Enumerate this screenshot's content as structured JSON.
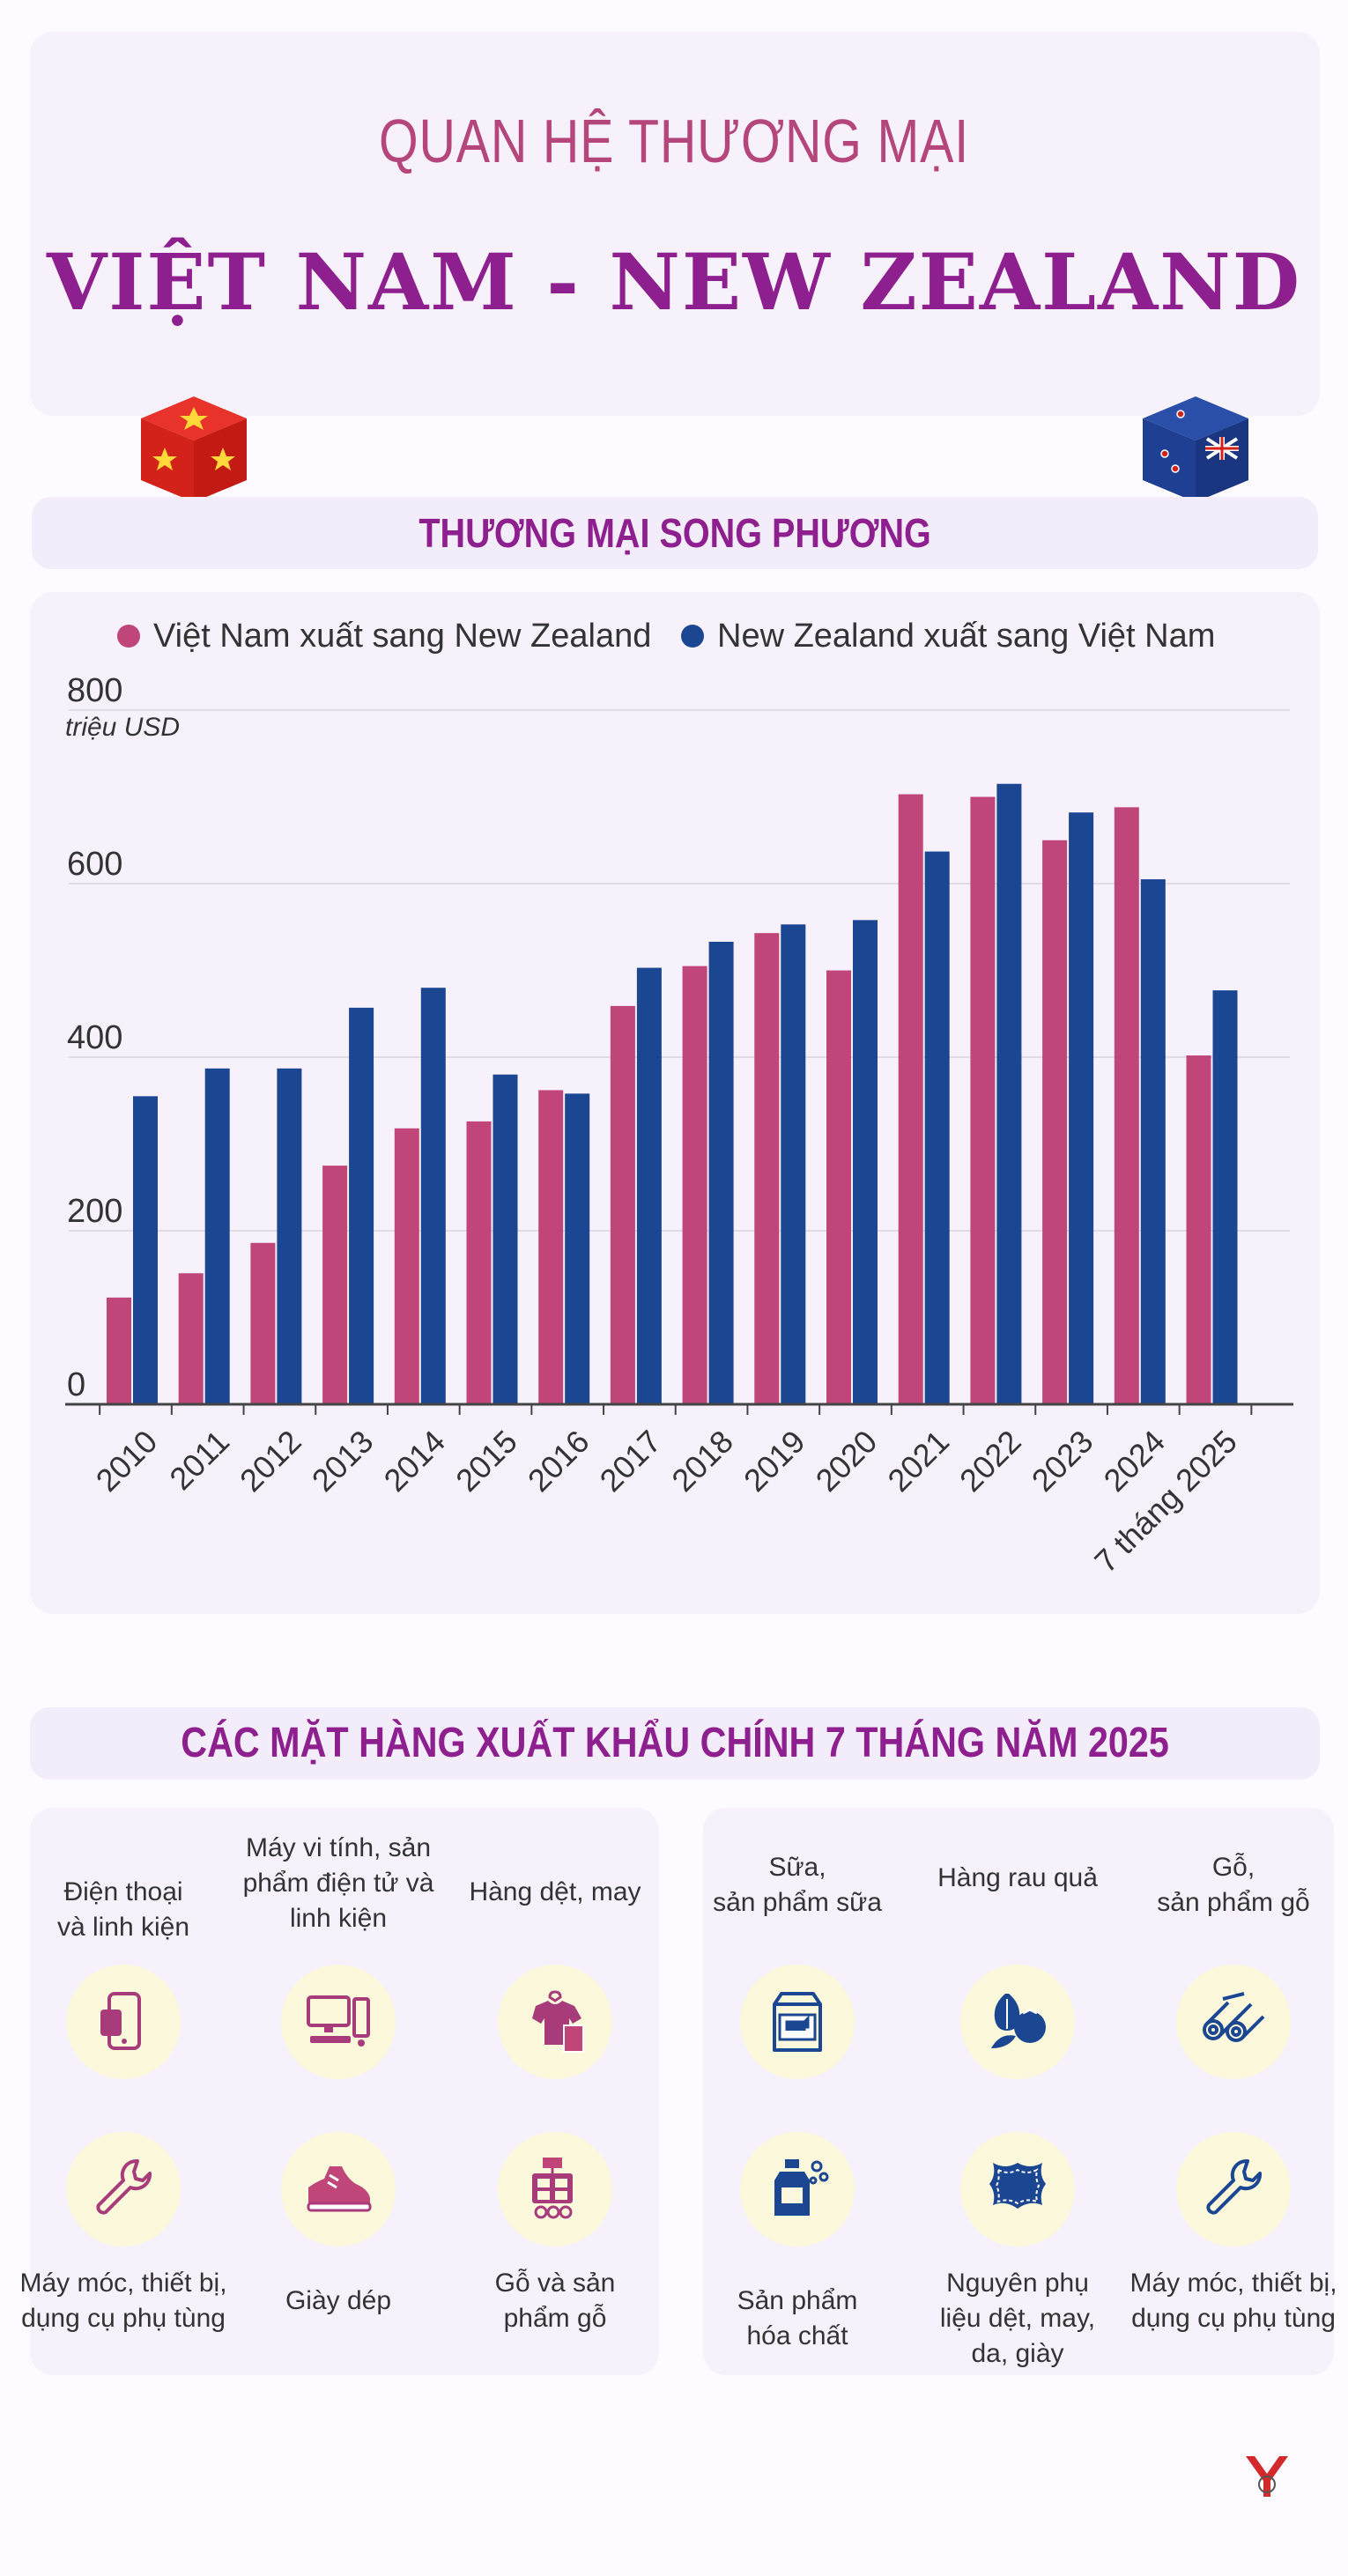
{
  "header": {
    "subtitle": "QUAN HỆ THƯƠNG MẠI",
    "title": "VIỆT NAM - NEW ZEALAND"
  },
  "section_trade": {
    "title": "THƯƠNG MẠI SONG PHƯƠNG"
  },
  "section_goods": {
    "title": "CÁC MẶT HÀNG XUẤT KHẨU CHÍNH 7 THÁNG NĂM 2025"
  },
  "colors": {
    "vn": "#c0467a",
    "nz": "#1b4691",
    "accent": "#8e1f8f",
    "pink": "#b5467c"
  },
  "chart_data": {
    "type": "bar",
    "unit": "triệu USD",
    "categories": [
      "2010",
      "2011",
      "2012",
      "2013",
      "2014",
      "2015",
      "2016",
      "2017",
      "2018",
      "2019",
      "2020",
      "2021",
      "2022",
      "2023",
      "2024",
      "7 tháng 2025"
    ],
    "series": [
      {
        "name": "Việt Nam xuất sang New Zealand",
        "color": "#c0467a",
        "values": [
          123,
          151,
          186,
          275,
          318,
          326,
          362,
          459,
          505,
          543,
          500,
          703,
          700,
          650,
          688,
          402
        ]
      },
      {
        "name": "New Zealand xuất sang Việt Nam",
        "color": "#1b4691",
        "values": [
          355,
          387,
          387,
          457,
          480,
          380,
          358,
          503,
          533,
          553,
          558,
          637,
          715,
          682,
          605,
          477
        ]
      }
    ],
    "ylim": [
      0,
      800
    ],
    "yticks": [
      "0",
      "200",
      "400",
      "600",
      "800"
    ],
    "grid": true,
    "legend": "top"
  },
  "vn_exports": [
    {
      "label": "Điện thoại\nvà linh kiện",
      "icon": "phone-icon"
    },
    {
      "label": "Máy vi tính, sản\nphẩm điện tử và\nlinh kiện",
      "icon": "computer-icon"
    },
    {
      "label": "Hàng dệt, may",
      "icon": "clothes-icon"
    },
    {
      "label": "Máy móc, thiết bị,\ndụng cụ phụ tùng",
      "icon": "wrench-icon"
    },
    {
      "label": "Giày dép",
      "icon": "shoe-icon"
    },
    {
      "label": "Gỗ và sản\nphẩm gỗ",
      "icon": "furniture-icon"
    }
  ],
  "nz_exports": [
    {
      "label": "Sữa,\nsản phẩm sữa",
      "icon": "milk-icon"
    },
    {
      "label": "Hàng rau quả",
      "icon": "vegetable-icon"
    },
    {
      "label": "Gỗ,\nsản phẩm gỗ",
      "icon": "logs-icon"
    },
    {
      "label": "Sản phẩm\nhóa chất",
      "icon": "chemical-icon"
    },
    {
      "label": "Nguyên phụ\nliệu dệt, may,\nda, giày",
      "icon": "leather-icon"
    },
    {
      "label": "Máy móc, thiết bị,\ndụng cụ phụ tùng",
      "icon": "wrench-icon"
    }
  ]
}
